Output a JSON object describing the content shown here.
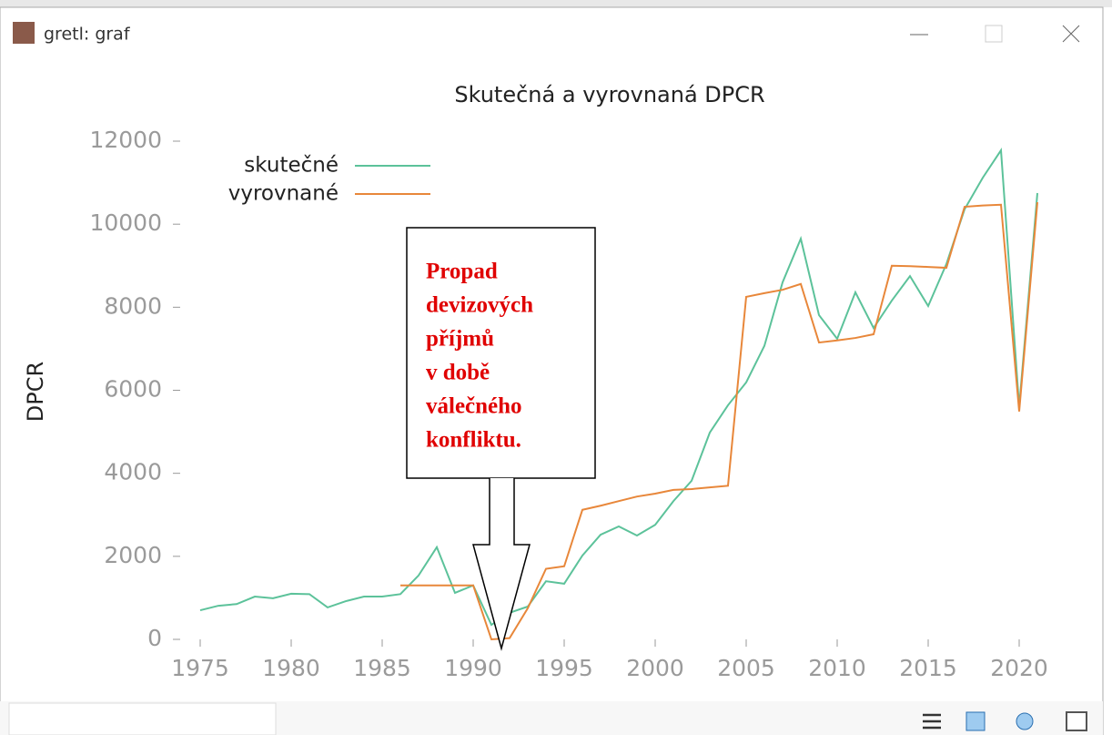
{
  "window": {
    "title": "gretl: graf"
  },
  "chart_data": {
    "type": "line",
    "title": "Skutečná a vyrovnaná DPCR",
    "y_label": "DPCR",
    "x": [
      1975,
      1976,
      1977,
      1978,
      1979,
      1980,
      1981,
      1982,
      1983,
      1984,
      1985,
      1986,
      1987,
      1988,
      1989,
      1990,
      1991,
      1992,
      1993,
      1994,
      1995,
      1996,
      1997,
      1998,
      1999,
      2000,
      2001,
      2002,
      2003,
      2004,
      2005,
      2006,
      2007,
      2008,
      2009,
      2010,
      2011,
      2012,
      2013,
      2014,
      2015,
      2016,
      2017,
      2018,
      2019,
      2020,
      2021
    ],
    "series": [
      {
        "name": "skutečné",
        "color": "#5cc29a",
        "values": [
          700,
          810,
          850,
          1030,
          990,
          1100,
          1090,
          770,
          920,
          1030,
          1030,
          1090,
          1540,
          2220,
          1120,
          1300,
          350,
          640,
          790,
          1400,
          1340,
          2020,
          2520,
          2720,
          2500,
          2760,
          3330,
          3820,
          4980,
          5640,
          6190,
          7070,
          8600,
          9650,
          7810,
          7240,
          8360,
          7500,
          8160,
          8750,
          8030,
          9040,
          10360,
          11120,
          11780,
          5600,
          10750
        ]
      },
      {
        "name": "vyrovnané",
        "color": "#e8873a",
        "values": [
          null,
          null,
          null,
          null,
          null,
          null,
          null,
          null,
          null,
          null,
          null,
          1300,
          1300,
          1300,
          1300,
          1300,
          0,
          30,
          750,
          1700,
          1760,
          3120,
          3220,
          3330,
          3440,
          3510,
          3600,
          3620,
          3660,
          3700,
          8250,
          8340,
          8420,
          8560,
          7150,
          7200,
          7260,
          7350,
          9000,
          8990,
          8970,
          8950,
          10420,
          10450,
          10470,
          5490,
          10530
        ]
      }
    ],
    "xlim": [
      1973.5,
      2022.3
    ],
    "xticks": [
      1975,
      1980,
      1985,
      1990,
      1995,
      2000,
      2005,
      2010,
      2015,
      2020
    ],
    "ylim": [
      0,
      12000
    ],
    "yticks": [
      0,
      2000,
      4000,
      6000,
      8000,
      10000,
      12000
    ],
    "legend": "top-left",
    "annotation": {
      "lines": [
        "Propad",
        "devizových",
        "příjmů",
        "v době",
        "válečného",
        "konfliktu."
      ]
    }
  }
}
